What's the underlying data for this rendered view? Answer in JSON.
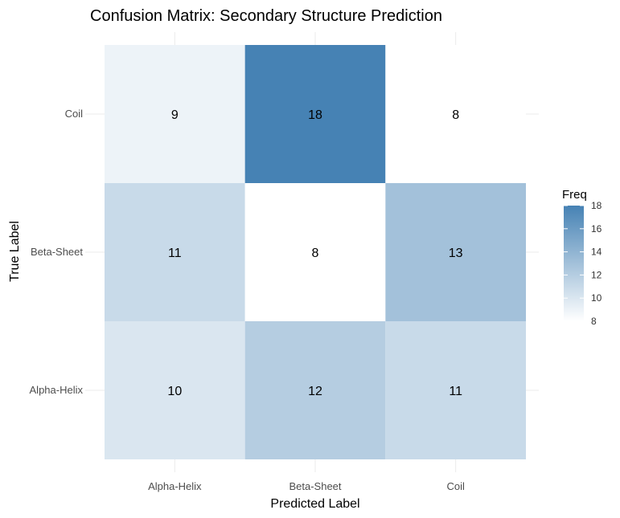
{
  "chart_data": {
    "type": "heatmap",
    "title": "Confusion Matrix: Secondary Structure Prediction",
    "xlabel": "Predicted Label",
    "ylabel": "True Label",
    "x_categories": [
      "Alpha-Helix",
      "Beta-Sheet",
      "Coil"
    ],
    "y_categories": [
      "Alpha-Helix",
      "Beta-Sheet",
      "Coil"
    ],
    "values": [
      [
        10,
        12,
        11
      ],
      [
        11,
        8,
        13
      ],
      [
        9,
        18,
        8
      ]
    ],
    "value_orientation": "rows follow y_categories, columns follow x_categories",
    "legend": {
      "title": "Freq",
      "placement": "right",
      "range": [
        8,
        18
      ],
      "ticks": [
        8,
        10,
        12,
        14,
        16,
        18
      ]
    },
    "colors": {
      "low": "#ffffff",
      "high": "#4682b4"
    },
    "grid": true
  }
}
